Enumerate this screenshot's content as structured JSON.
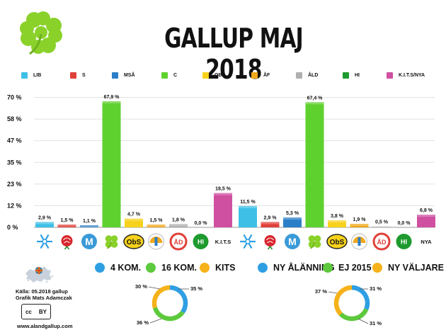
{
  "title": "GALLUP MAJ 2018",
  "colors": {
    "LIB": "#3ec0e6",
    "S": "#e0403a",
    "MSA": "#2b7fc8",
    "C": "#5fd12e",
    "OBS": "#f7d21c",
    "AF": "#f1a81c",
    "ALD": "#b0b0b0",
    "HI": "#1e9a2e",
    "KITS": "#cf4fa0",
    "donut_blue": "#2f9fe3",
    "donut_green": "#5dc93d",
    "donut_yellow": "#f6b21a"
  },
  "legend": [
    {
      "label": "LIB",
      "color": "#3ec0e6"
    },
    {
      "label": "S",
      "color": "#e0403a"
    },
    {
      "label": "MSÅ",
      "color": "#2b7fc8"
    },
    {
      "label": "C",
      "color": "#5fd12e"
    },
    {
      "label": "OBS",
      "color": "#f7d21c"
    },
    {
      "label": "ÅF",
      "color": "#f1a81c"
    },
    {
      "label": "ÅLD",
      "color": "#b0b0b0"
    },
    {
      "label": "HI",
      "color": "#1e9a2e"
    },
    {
      "label": "K.I.T.S/NYA",
      "color": "#cf4fa0"
    }
  ],
  "chart_data": [
    {
      "type": "bar",
      "categories": [
        "LIB",
        "S",
        "MSÅ",
        "C",
        "OBS",
        "ÅF",
        "ÅLD",
        "HI",
        "K.I.T.S"
      ],
      "values": [
        2.9,
        1.5,
        1.1,
        67.9,
        4.7,
        1.5,
        1.8,
        0.0,
        18.5
      ],
      "value_labels": [
        "2,9 %",
        "1,5 %",
        "1,1 %",
        "67,9 %",
        "4,7 %",
        "1,5 %",
        "1,8 %",
        "0,0 %",
        "18,5 %"
      ],
      "yticks": [
        "0 %",
        "12 %",
        "23 %",
        "35 %",
        "47 %",
        "58 %",
        "70 %"
      ],
      "ylim": [
        0,
        70
      ],
      "party_marks": [
        "LIB",
        "S",
        "MSÅ",
        "C",
        "OBS",
        "ÅF",
        "ÅLD",
        "HI",
        "K.I.T.S"
      ]
    },
    {
      "type": "bar",
      "categories": [
        "LIB",
        "S",
        "MSÅ",
        "C",
        "OBS",
        "ÅF",
        "ÅLD",
        "HI",
        "NYA"
      ],
      "values": [
        11.5,
        2.9,
        5.3,
        67.4,
        3.8,
        1.9,
        0.5,
        0.0,
        6.8
      ],
      "value_labels": [
        "11,5 %",
        "2,9 %",
        "5,3 %",
        "67,4 %",
        "3,8 %",
        "1,9 %",
        "0,5 %",
        "0,0 %",
        "6,8 %"
      ],
      "ylim": [
        0,
        70
      ],
      "party_marks": [
        "LIB",
        "S",
        "MSÅ",
        "C",
        "OBS",
        "ÅF",
        "ÅLD",
        "HI",
        "NYA"
      ]
    },
    {
      "type": "pie",
      "donut": true,
      "legend": [
        "4 KOM.",
        "16 KOM.",
        "KITS"
      ],
      "values": [
        35,
        36,
        30
      ],
      "labels": [
        "35 %",
        "36 %",
        "30 %"
      ],
      "colors": [
        "#2f9fe3",
        "#5dc93d",
        "#f6b21a"
      ]
    },
    {
      "type": "pie",
      "donut": true,
      "legend": [
        "NY ÅLÄNNING",
        "EJ 2015",
        "NY VÄLJARE"
      ],
      "values": [
        31,
        31,
        37
      ],
      "labels": [
        "31 %",
        "31 %",
        "37 %"
      ],
      "colors": [
        "#2f9fe3",
        "#5dc93d",
        "#f6b21a"
      ]
    }
  ],
  "credits": {
    "source": "Källa: 05.2018 gallup",
    "author": "Grafik Mats Adamczak",
    "cc": "cc",
    "by": "BY",
    "url": "www.alandgallup.com"
  }
}
